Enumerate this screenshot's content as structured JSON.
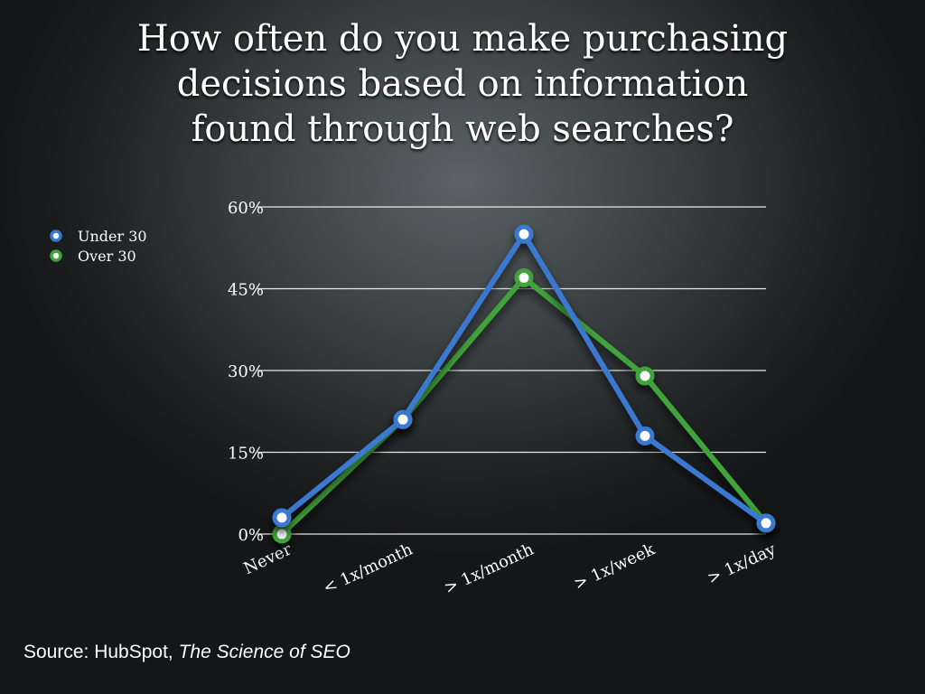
{
  "title_lines": [
    "How often do you make purchasing",
    "decisions based on information",
    "found through web searches?"
  ],
  "source": {
    "prefix": "Source: HubSpot, ",
    "work": "The Science of SEO"
  },
  "chart_data": {
    "type": "line",
    "title": "How often do you make purchasing decisions based on information found through web searches?",
    "categories": [
      "Never",
      "< 1x/month",
      "> 1x/month",
      "> 1x/week",
      "> 1x/day"
    ],
    "series": [
      {
        "name": "Under 30",
        "color": "#3a78d0",
        "values": [
          3,
          21,
          55,
          18,
          2
        ]
      },
      {
        "name": "Over 30",
        "color": "#3fa33a",
        "values": [
          0,
          21,
          47,
          29,
          2
        ]
      }
    ],
    "ylim": [
      0,
      60
    ],
    "yticks": [
      0,
      15,
      30,
      45,
      60
    ],
    "ytick_labels": [
      "0%",
      "15%",
      "30%",
      "45%",
      "60%"
    ],
    "grid": true,
    "legend": "top-left",
    "xlabel": "",
    "ylabel": ""
  }
}
